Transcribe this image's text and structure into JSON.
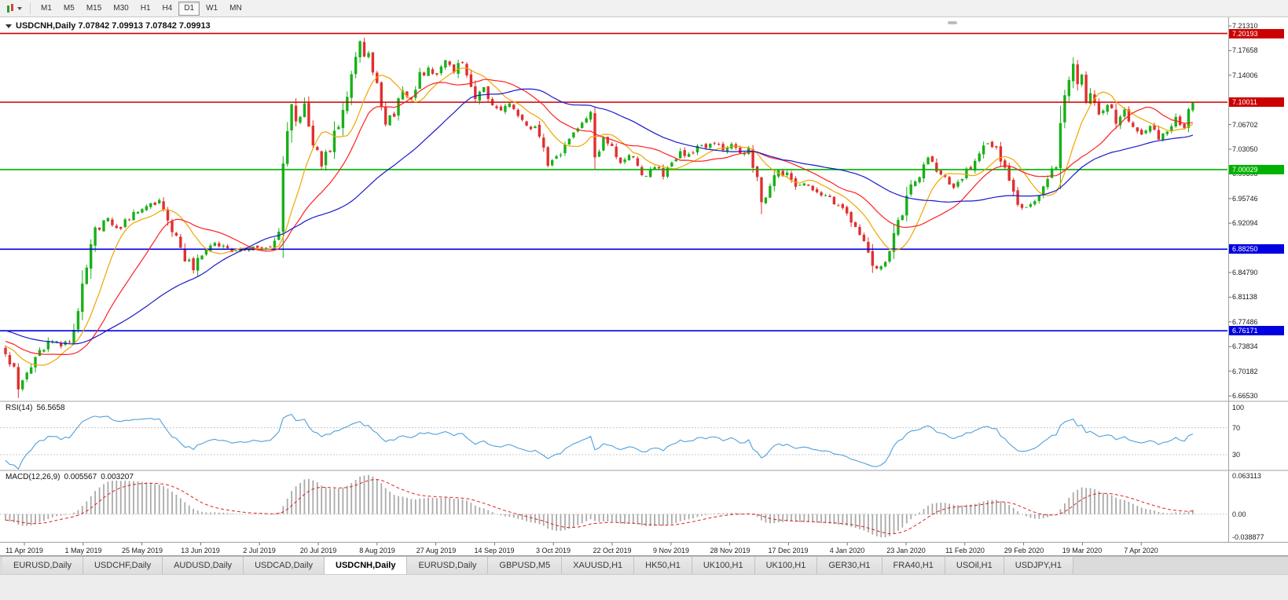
{
  "window": {
    "title": "USDCNH,Daily"
  },
  "toolbar": {
    "timeframes": [
      {
        "label": "M1"
      },
      {
        "label": "M5"
      },
      {
        "label": "M15"
      },
      {
        "label": "M30"
      },
      {
        "label": "H1"
      },
      {
        "label": "H4"
      },
      {
        "label": "D1",
        "active": true
      },
      {
        "label": "W1"
      },
      {
        "label": "MN"
      }
    ]
  },
  "chart": {
    "title_text": "USDCNH,Daily 7.07842 7.09913 7.07842 7.09913",
    "rsi_label": "RSI(14)",
    "rsi_value": "56.5658",
    "macd_label": "MACD(12,26,9)",
    "macd_value_main": "0.005567",
    "macd_value_signal": "0.003207"
  },
  "price_axis": {
    "min": 6.6584,
    "max": 7.2212,
    "labels": [
      "7.21310",
      "7.17658",
      "7.14006",
      "7.06702",
      "7.03050",
      "6.99398",
      "6.95746",
      "6.92094",
      "6.84790",
      "6.81138",
      "6.77486",
      "6.73834",
      "6.70182",
      "6.66530"
    ],
    "levels": [
      {
        "label": "7.20193",
        "value": 7.20193,
        "color": "#CC0000"
      },
      {
        "label": "7.10011",
        "value": 7.10011,
        "color": "#CC0000"
      },
      {
        "label": "7.00029",
        "value": 7.00029,
        "color": "#00B200"
      },
      {
        "label": "6.88250",
        "value": 6.8825,
        "color": "#0000E0"
      },
      {
        "label": "6.76171",
        "value": 6.76171,
        "color": "#0000E0"
      }
    ]
  },
  "rsi_axis": {
    "labels": [
      {
        "text": "100",
        "value": 100
      },
      {
        "text": "70",
        "value": 70
      },
      {
        "text": "30",
        "value": 30
      }
    ],
    "level_lines": [
      70,
      30
    ]
  },
  "macd_axis": {
    "top": "0.063113",
    "zero": "0.00",
    "bottom": "-0.038877"
  },
  "date_axis": [
    "11 Apr 2019",
    "1 May 2019",
    "25 May 2019",
    "13 Jun 2019",
    "2 Jul 2019",
    "20 Jul 2019",
    "8 Aug 2019",
    "27 Aug 2019",
    "14 Sep 2019",
    "3 Oct 2019",
    "22 Oct 2019",
    "9 Nov 2019",
    "28 Nov 2019",
    "17 Dec 2019",
    "4 Jan 2020",
    "23 Jan 2020",
    "11 Feb 2020",
    "29 Feb 2020",
    "19 Mar 2020",
    "7 Apr 2020"
  ],
  "tabs": [
    {
      "label": "EURUSD,Daily"
    },
    {
      "label": "USDCHF,Daily"
    },
    {
      "label": "AUDUSD,Daily"
    },
    {
      "label": "USDCAD,Daily"
    },
    {
      "label": "USDCNH,Daily",
      "active": true
    },
    {
      "label": "EURUSD,Daily"
    },
    {
      "label": "GBPUSD,M5"
    },
    {
      "label": "XAUUSD,H1"
    },
    {
      "label": "HK50,H1"
    },
    {
      "label": "UK100,H1"
    },
    {
      "label": "UK100,H1"
    },
    {
      "label": "GER30,H1"
    },
    {
      "label": "FRA40,H1"
    },
    {
      "label": "USOil,H1"
    },
    {
      "label": "USDJPY,H1"
    }
  ],
  "colors": {
    "candle_up": "#18B018",
    "candle_down": "#E03030",
    "ma_fast": "#F0A500",
    "ma_mid": "#FF2020",
    "ma_slow": "#1818CC",
    "rsi_line": "#4FA0DC",
    "macd_hist": "#AAAAAA",
    "macd_signal": "#E02020",
    "grid_dash": "#C8C8C8",
    "pane_border": "#A0A0A0",
    "axis_text": "#1A1A1A"
  },
  "chart_data": {
    "type": "candlestick",
    "symbol": "USDCNH",
    "timeframe": "Daily",
    "ohlc_current": {
      "open": 7.07842,
      "high": 7.09913,
      "low": 7.07842,
      "close": 7.09913
    },
    "price_range_visible": [
      6.6584,
      7.2212
    ],
    "bar_count": 279,
    "pre_waypoints": [
      [
        -50,
        6.8
      ],
      [
        -30,
        6.772
      ],
      [
        -10,
        6.746
      ],
      [
        -1,
        6.736
      ]
    ],
    "close_waypoints": [
      [
        0,
        6.732
      ],
      [
        2,
        6.705
      ],
      [
        3,
        6.672
      ],
      [
        5,
        6.7
      ],
      [
        8,
        6.733
      ],
      [
        11,
        6.748
      ],
      [
        13,
        6.737
      ],
      [
        15,
        6.752
      ],
      [
        17,
        6.792
      ],
      [
        19,
        6.852
      ],
      [
        21,
        6.908
      ],
      [
        24,
        6.928
      ],
      [
        27,
        6.912
      ],
      [
        30,
        6.938
      ],
      [
        33,
        6.944
      ],
      [
        36,
        6.952
      ],
      [
        38,
        6.93
      ],
      [
        40,
        6.902
      ],
      [
        42,
        6.87
      ],
      [
        44,
        6.854
      ],
      [
        46,
        6.879
      ],
      [
        49,
        6.889
      ],
      [
        52,
        6.883
      ],
      [
        55,
        6.879
      ],
      [
        58,
        6.887
      ],
      [
        60,
        6.881
      ],
      [
        62,
        6.885
      ],
      [
        64,
        6.916
      ],
      [
        65,
        7.0
      ],
      [
        66,
        7.058
      ],
      [
        67,
        7.098
      ],
      [
        68,
        7.072
      ],
      [
        70,
        7.094
      ],
      [
        72,
        7.042
      ],
      [
        74,
        7.008
      ],
      [
        76,
        7.032
      ],
      [
        78,
        7.066
      ],
      [
        80,
        7.118
      ],
      [
        82,
        7.158
      ],
      [
        83,
        7.19
      ],
      [
        84,
        7.168
      ],
      [
        85,
        7.178
      ],
      [
        86,
        7.142
      ],
      [
        88,
        7.102
      ],
      [
        89,
        7.068
      ],
      [
        91,
        7.082
      ],
      [
        93,
        7.118
      ],
      [
        95,
        7.108
      ],
      [
        97,
        7.138
      ],
      [
        99,
        7.148
      ],
      [
        101,
        7.142
      ],
      [
        103,
        7.164
      ],
      [
        105,
        7.146
      ],
      [
        107,
        7.162
      ],
      [
        108,
        7.132
      ],
      [
        110,
        7.108
      ],
      [
        112,
        7.12
      ],
      [
        114,
        7.096
      ],
      [
        116,
        7.086
      ],
      [
        118,
        7.1
      ],
      [
        120,
        7.076
      ],
      [
        122,
        7.062
      ],
      [
        124,
        7.066
      ],
      [
        126,
        7.042
      ],
      [
        127,
        7.002
      ],
      [
        129,
        7.016
      ],
      [
        131,
        7.036
      ],
      [
        133,
        7.056
      ],
      [
        135,
        7.07
      ],
      [
        137,
        7.088
      ],
      [
        138,
        7.022
      ],
      [
        140,
        7.046
      ],
      [
        142,
        7.032
      ],
      [
        144,
        7.012
      ],
      [
        146,
        7.026
      ],
      [
        148,
        7.002
      ],
      [
        150,
        6.992
      ],
      [
        152,
        7.006
      ],
      [
        154,
        6.992
      ],
      [
        156,
        7.012
      ],
      [
        158,
        7.026
      ],
      [
        160,
        7.021
      ],
      [
        162,
        7.036
      ],
      [
        164,
        7.031
      ],
      [
        166,
        7.041
      ],
      [
        168,
        7.031
      ],
      [
        170,
        7.036
      ],
      [
        172,
        7.022
      ],
      [
        174,
        7.031
      ],
      [
        176,
        6.982
      ],
      [
        177,
        6.952
      ],
      [
        179,
        6.976
      ],
      [
        181,
        6.996
      ],
      [
        183,
        6.991
      ],
      [
        185,
        6.976
      ],
      [
        187,
        6.981
      ],
      [
        189,
        6.966
      ],
      [
        191,
        6.961
      ],
      [
        193,
        6.956
      ],
      [
        195,
        6.946
      ],
      [
        197,
        6.931
      ],
      [
        199,
        6.921
      ],
      [
        201,
        6.896
      ],
      [
        203,
        6.866
      ],
      [
        204,
        6.851
      ],
      [
        206,
        6.871
      ],
      [
        208,
        6.901
      ],
      [
        210,
        6.936
      ],
      [
        212,
        6.971
      ],
      [
        214,
        6.991
      ],
      [
        216,
        7.021
      ],
      [
        218,
        7.001
      ],
      [
        220,
        6.986
      ],
      [
        222,
        6.976
      ],
      [
        224,
        6.991
      ],
      [
        226,
        7.006
      ],
      [
        228,
        7.021
      ],
      [
        230,
        7.041
      ],
      [
        232,
        7.031
      ],
      [
        234,
        7.001
      ],
      [
        236,
        6.966
      ],
      [
        238,
        6.941
      ],
      [
        240,
        6.951
      ],
      [
        242,
        6.966
      ],
      [
        244,
        6.991
      ],
      [
        246,
        7.011
      ],
      [
        247,
        7.061
      ],
      [
        248,
        7.101
      ],
      [
        249,
        7.131
      ],
      [
        250,
        7.156
      ],
      [
        251,
        7.121
      ],
      [
        252,
        7.141
      ],
      [
        253,
        7.101
      ],
      [
        254,
        7.116
      ],
      [
        256,
        7.081
      ],
      [
        258,
        7.096
      ],
      [
        260,
        7.071
      ],
      [
        262,
        7.086
      ],
      [
        264,
        7.066
      ],
      [
        266,
        7.051
      ],
      [
        268,
        7.061
      ],
      [
        270,
        7.046
      ],
      [
        272,
        7.061
      ],
      [
        274,
        7.076
      ],
      [
        276,
        7.066
      ],
      [
        277,
        7.081
      ],
      [
        278,
        7.099
      ]
    ],
    "moving_averages": [
      {
        "period": 10,
        "color_key": "ma_fast"
      },
      {
        "period": 21,
        "color_key": "ma_mid"
      },
      {
        "period": 45,
        "color_key": "ma_slow"
      }
    ],
    "horizontal_levels": [
      7.20193,
      7.10011,
      7.00029,
      6.8825,
      6.76171
    ],
    "indicators": [
      {
        "name": "RSI",
        "period": 14,
        "current": 56.5658,
        "levels": [
          70,
          30
        ],
        "axis_labels": [
          100,
          70,
          30
        ]
      },
      {
        "name": "MACD",
        "params": [
          12,
          26,
          9
        ],
        "current_main": 0.005567,
        "current_signal": 0.003207,
        "axis_max": 0.063113,
        "axis_min": -0.038877
      }
    ]
  }
}
